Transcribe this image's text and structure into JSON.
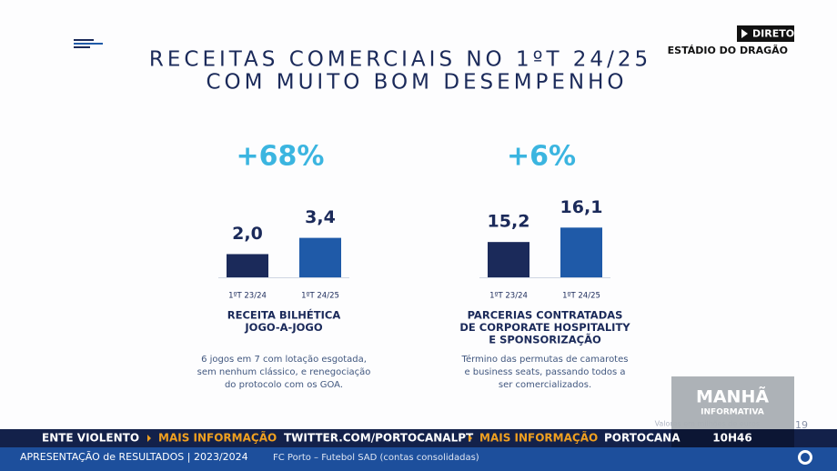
{
  "title": [
    "RECEITAS COMERCIAIS NO 1ºT 24/25",
    "COM MUITO BOM DESEMPENHO"
  ],
  "chart_data": [
    {
      "type": "bar",
      "annotation": "+68%",
      "categories": [
        "1ºT 23/24",
        "1ºT 24/25"
      ],
      "values": [
        2.0,
        3.4
      ],
      "value_labels": [
        "2,0",
        "3,4"
      ],
      "colors": [
        "#1b2a5a",
        "#1f5aa8"
      ],
      "ylim": [
        0,
        4.7
      ],
      "title": [
        "RECEITA BILHÉTICA",
        "JOGO-A-JOGO"
      ],
      "note": [
        "6 jogos em 7 com lotação esgotada,",
        "sem nenhum clássico, e renegociação",
        "do protocolo com os GOA."
      ]
    },
    {
      "type": "bar",
      "annotation": "+6%",
      "categories": [
        "1ºT 23/24",
        "1ºT 24/25"
      ],
      "values": [
        15.2,
        16.1
      ],
      "value_labels": [
        "15,2",
        "16,1"
      ],
      "colors": [
        "#1b2a5a",
        "#1f5aa8"
      ],
      "ylim": [
        13,
        16.4
      ],
      "title": [
        "PARCERIAS CONTRATADAS",
        "DE CORPORATE HOSPITALITY",
        "E SPONSORIZAÇÃO"
      ],
      "note": [
        "Término das permutas de camarotes",
        "e business seats, passando todos a",
        "ser comercializados."
      ]
    }
  ],
  "footnote": "Valores em milhões de euros",
  "page_number": "19",
  "broadcast": {
    "live": "DIRETO",
    "location": "ESTÁDIO DO DRAGÃO",
    "show": [
      "MANHÃ",
      "INFORMATIVA"
    ],
    "ticker": [
      "ENTE VIOLENTO",
      "MAIS INFORMAÇÃO",
      "TWITTER.COM/PORTOCANALPT",
      "MAIS INFORMAÇÃO",
      "PORTOCANA"
    ],
    "time": "10H46",
    "bottom": [
      "APRESENTAÇÃO de RESULTADOS | 2023/2024",
      "FC Porto – Futebol SAD (contas consolidadas)"
    ]
  }
}
